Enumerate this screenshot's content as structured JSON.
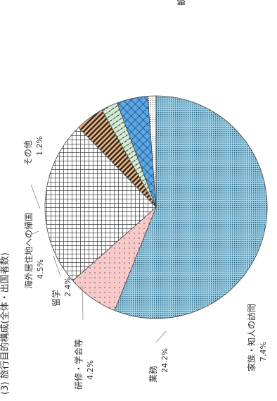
{
  "chart_data": {
    "type": "pie",
    "title": "(3) 旅行目的構成(全体・出国者数)",
    "slices": [
      {
        "label": "観光・レジャー",
        "value": 56.1,
        "display": "56.1%",
        "fill": "#a9d3e6",
        "pattern": "dotted-cyan"
      },
      {
        "label": "家族・知人の訪問",
        "value": 7.4,
        "display": "7.4%",
        "fill": "#f7c6c6",
        "pattern": "sparse-dots"
      },
      {
        "label": "業務",
        "value": 24.2,
        "display": "24.2%",
        "fill": "#ffffff",
        "pattern": "grid"
      },
      {
        "label": "研修・学会等",
        "value": 4.2,
        "display": "4.2%",
        "fill": "#f3b57a",
        "pattern": "diagonal-stripes"
      },
      {
        "label": "留学",
        "value": 2.4,
        "display": "2.4%",
        "fill": "#d4ecd4",
        "pattern": "dash-dot"
      },
      {
        "label": "海外居住地への帰国",
        "value": 4.5,
        "display": "4.5%",
        "fill": "#5aa8e8",
        "pattern": "crosshatch"
      },
      {
        "label": "その他",
        "value": 1.2,
        "display": "1.2%",
        "fill": "#ffffff",
        "pattern": "fine-dots"
      }
    ],
    "rotation": "rotated 90deg counter-clockwise",
    "legend": "none (direct labels)"
  }
}
